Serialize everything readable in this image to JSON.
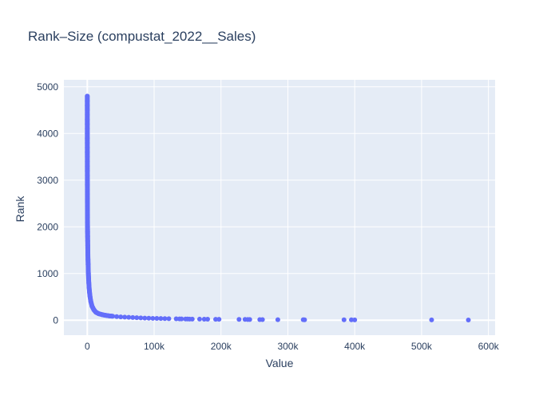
{
  "chart_data": {
    "type": "scatter",
    "title": "Rank–Size (compustat_2022__Sales)",
    "xlabel": "Value",
    "ylabel": "Rank",
    "xlim": [
      -35000,
      610000
    ],
    "ylim": [
      -320,
      5150
    ],
    "x_ticks": [
      {
        "value": 0,
        "label": "0"
      },
      {
        "value": 100000,
        "label": "100k"
      },
      {
        "value": 200000,
        "label": "200k"
      },
      {
        "value": 300000,
        "label": "300k"
      },
      {
        "value": 400000,
        "label": "400k"
      },
      {
        "value": 500000,
        "label": "500k"
      },
      {
        "value": 600000,
        "label": "600k"
      }
    ],
    "y_ticks": [
      {
        "value": 0,
        "label": "0"
      },
      {
        "value": 1000,
        "label": "1000"
      },
      {
        "value": 2000,
        "label": "2000"
      },
      {
        "value": 3000,
        "label": "3000"
      },
      {
        "value": 4000,
        "label": "4000"
      },
      {
        "value": 5000,
        "label": "5000"
      }
    ],
    "grid": true,
    "colors": {
      "marker": "#636efa",
      "plot_bg": "#e5ecf6",
      "grid": "#ffffff",
      "text": "#2a3f5f"
    },
    "points": [
      [
        0,
        4800
      ],
      [
        0,
        4700
      ],
      [
        1,
        4600
      ],
      [
        2,
        4500
      ],
      [
        3,
        4400
      ],
      [
        5,
        4300
      ],
      [
        7,
        4200
      ],
      [
        9,
        4100
      ],
      [
        12,
        4000
      ],
      [
        15,
        3900
      ],
      [
        20,
        3800
      ],
      [
        25,
        3700
      ],
      [
        31,
        3600
      ],
      [
        38,
        3500
      ],
      [
        46,
        3400
      ],
      [
        55,
        3300
      ],
      [
        66,
        3200
      ],
      [
        78,
        3100
      ],
      [
        92,
        3000
      ],
      [
        108,
        2900
      ],
      [
        126,
        2800
      ],
      [
        147,
        2700
      ],
      [
        170,
        2600
      ],
      [
        197,
        2500
      ],
      [
        228,
        2400
      ],
      [
        263,
        2300
      ],
      [
        304,
        2200
      ],
      [
        350,
        2100
      ],
      [
        403,
        2000
      ],
      [
        463,
        1900
      ],
      [
        532,
        1800
      ],
      [
        612,
        1700
      ],
      [
        703,
        1600
      ],
      [
        808,
        1500
      ],
      [
        930,
        1400
      ],
      [
        1070,
        1300
      ],
      [
        1235,
        1200
      ],
      [
        1430,
        1100
      ],
      [
        1665,
        1000
      ],
      [
        1950,
        900
      ],
      [
        2300,
        800
      ],
      [
        2750,
        700
      ],
      [
        3350,
        600
      ],
      [
        4150,
        500
      ],
      [
        5300,
        400
      ],
      [
        7100,
        300
      ],
      [
        10000,
        220
      ],
      [
        13000,
        170
      ],
      [
        17000,
        140
      ],
      [
        22000,
        120
      ],
      [
        27000,
        105
      ],
      [
        33000,
        92
      ],
      [
        38000,
        85
      ],
      [
        44000,
        78
      ],
      [
        50000,
        72
      ],
      [
        56000,
        67
      ],
      [
        62000,
        62
      ],
      [
        68000,
        58
      ],
      [
        74000,
        54
      ],
      [
        80000,
        50
      ],
      [
        86000,
        46
      ],
      [
        92000,
        43
      ],
      [
        98000,
        40
      ],
      [
        104000,
        38
      ],
      [
        110000,
        36
      ],
      [
        116000,
        34
      ],
      [
        122000,
        32
      ],
      [
        133000,
        30
      ],
      [
        138000,
        29
      ],
      [
        141000,
        28
      ],
      [
        147000,
        27
      ],
      [
        150000,
        26
      ],
      [
        153000,
        25
      ],
      [
        157000,
        24
      ],
      [
        168000,
        23
      ],
      [
        175000,
        22
      ],
      [
        180000,
        21
      ],
      [
        192000,
        20
      ],
      [
        197000,
        19
      ],
      [
        227000,
        18
      ],
      [
        236000,
        17
      ],
      [
        240000,
        16
      ],
      [
        243000,
        15
      ],
      [
        258000,
        14
      ],
      [
        262000,
        13
      ],
      [
        285000,
        12
      ],
      [
        323000,
        11
      ],
      [
        325000,
        10
      ],
      [
        384000,
        9
      ],
      [
        395000,
        8
      ],
      [
        400000,
        7
      ],
      [
        515000,
        6
      ],
      [
        570000,
        5
      ]
    ]
  }
}
